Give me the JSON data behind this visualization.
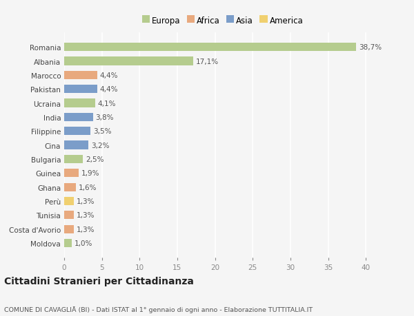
{
  "countries": [
    "Romania",
    "Albania",
    "Marocco",
    "Pakistan",
    "Ucraina",
    "India",
    "Filippine",
    "Cina",
    "Bulgaria",
    "Guinea",
    "Ghana",
    "Perù",
    "Tunisia",
    "Costa d'Avorio",
    "Moldova"
  ],
  "values": [
    38.7,
    17.1,
    4.4,
    4.4,
    4.1,
    3.8,
    3.5,
    3.2,
    2.5,
    1.9,
    1.6,
    1.3,
    1.3,
    1.3,
    1.0
  ],
  "labels": [
    "38,7%",
    "17,1%",
    "4,4%",
    "4,4%",
    "4,1%",
    "3,8%",
    "3,5%",
    "3,2%",
    "2,5%",
    "1,9%",
    "1,6%",
    "1,3%",
    "1,3%",
    "1,3%",
    "1,0%"
  ],
  "continents": [
    "Europa",
    "Europa",
    "Africa",
    "Asia",
    "Europa",
    "Asia",
    "Asia",
    "Asia",
    "Europa",
    "Africa",
    "Africa",
    "America",
    "Africa",
    "Africa",
    "Europa"
  ],
  "colors": {
    "Europa": "#b5cc8e",
    "Africa": "#e8a97e",
    "Asia": "#7b9dc9",
    "America": "#f0d070"
  },
  "legend_labels": [
    "Europa",
    "Africa",
    "Asia",
    "America"
  ],
  "legend_colors": [
    "#b5cc8e",
    "#e8a97e",
    "#7b9dc9",
    "#f0d070"
  ],
  "xlim": [
    0,
    42
  ],
  "xticks": [
    0,
    5,
    10,
    15,
    20,
    25,
    30,
    35,
    40
  ],
  "title": "Cittadini Stranieri per Cittadinanza",
  "subtitle": "COMUNE DI CAVAGLIĀ (BI) - Dati ISTAT al 1° gennaio di ogni anno - Elaborazione TUTTITALIA.IT",
  "background_color": "#f5f5f5",
  "grid_color": "#ffffff",
  "bar_height": 0.6,
  "label_fontsize": 7.5,
  "tick_fontsize": 7.5,
  "xtick_fontsize": 7.5,
  "title_fontsize": 10,
  "subtitle_fontsize": 6.8,
  "legend_fontsize": 8.5
}
